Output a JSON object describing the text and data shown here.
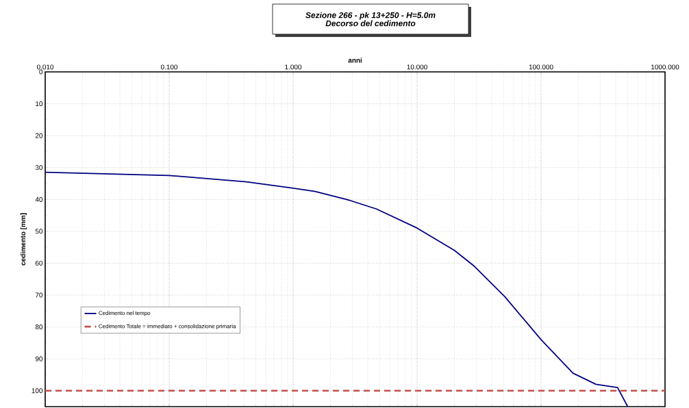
{
  "chart_data": {
    "type": "line",
    "title": "Sezione 266 - pk 13+250 - H=5.0m",
    "subtitle": "Decorso del cedimento",
    "xlabel": "anni",
    "ylabel": "cedimento [mm]",
    "log": "x",
    "grid": true,
    "legend": "bottom left",
    "marker": "none",
    "xlim": [
      0.01,
      1000
    ],
    "ylim": [
      105,
      0
    ],
    "xticks": [
      {
        "value": 0.01,
        "label": "0.010"
      },
      {
        "value": 0.1,
        "label": "0.100"
      },
      {
        "value": 1,
        "label": "1.000"
      },
      {
        "value": 10,
        "label": "10.000"
      },
      {
        "value": 100,
        "label": "100.000"
      },
      {
        "value": 1000,
        "label": "1000.000"
      }
    ],
    "yticks": [
      0,
      10,
      20,
      30,
      40,
      50,
      60,
      70,
      80,
      90,
      100
    ],
    "series": [
      {
        "name": "Cedimento nel tempo",
        "color": "#000080",
        "line_style": "solid",
        "x": [
          0.01,
          0.1,
          0.42,
          1,
          1.5,
          2.7,
          4.7,
          10,
          20,
          29,
          51,
          100,
          181,
          277,
          414,
          500
        ],
        "values": [
          31.5,
          32.5,
          34.5,
          36.5,
          37.5,
          40,
          43,
          49,
          56,
          61,
          70.5,
          84,
          94.5,
          98,
          99,
          105
        ]
      },
      {
        "name": "Cedimento Totale = immediato + consolidazione primaria",
        "color": "#c0504d",
        "line_style": "dashed",
        "x": [
          0.01,
          1000
        ],
        "values": [
          100,
          100
        ]
      }
    ]
  }
}
